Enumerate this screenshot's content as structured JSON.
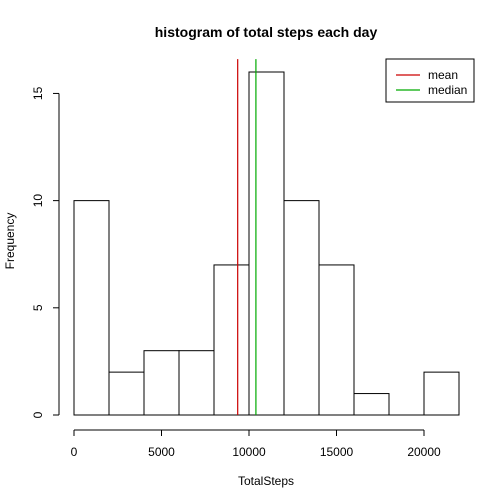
{
  "chart_data": {
    "type": "histogram",
    "title": "histogram of total steps each day",
    "xlabel": "TotalSteps",
    "ylabel": "Frequency",
    "bin_edges": [
      0,
      2000,
      4000,
      6000,
      8000,
      10000,
      12000,
      14000,
      16000,
      18000,
      20000,
      22000
    ],
    "counts": [
      10,
      2,
      3,
      3,
      7,
      16,
      10,
      7,
      1,
      0,
      2
    ],
    "x_ticks": [
      0,
      5000,
      10000,
      15000,
      20000
    ],
    "y_ticks": [
      0,
      5,
      10,
      15
    ],
    "xlim": [
      0,
      22000
    ],
    "ylim": [
      0,
      16.6
    ],
    "reference_lines": [
      {
        "name": "mean",
        "x": 9354,
        "color": "#cc0000"
      },
      {
        "name": "median",
        "x": 10395,
        "color": "#00aa00"
      }
    ],
    "legend_position": "top-right",
    "bar_fill": "#ffffff",
    "bar_stroke": "#000000"
  }
}
